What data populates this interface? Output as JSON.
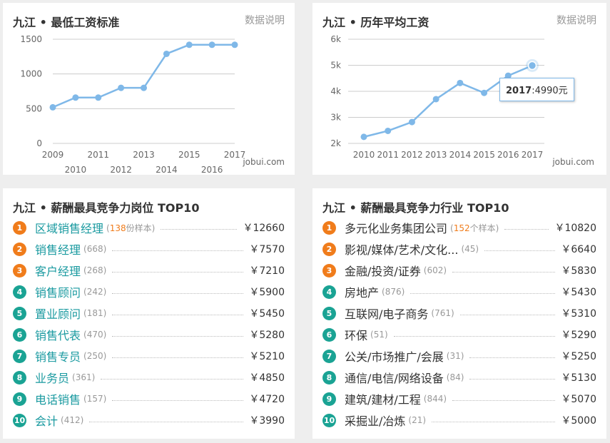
{
  "panels": {
    "min_wage": {
      "title": "九江 • 最低工资标准",
      "link": "数据说明",
      "watermark": "jobui.com"
    },
    "avg_salary": {
      "title": "九江 • 历年平均工资",
      "link": "数据说明",
      "watermark": "jobui.com",
      "tooltip": {
        "year": "2017",
        "value": "4990元"
      }
    },
    "positions": {
      "title": "九江 • 薪酬最具竞争力岗位 TOP10"
    },
    "industries": {
      "title": "九江 • 薪酬最具竞争力行业 TOP10"
    }
  },
  "chart_data": [
    {
      "type": "line",
      "y_ticks": [
        "0",
        "500",
        "1000",
        "1500"
      ],
      "ylim": [
        0,
        1500
      ],
      "x_tick_labels_upper": [
        "2009",
        "2011",
        "2013",
        "2015",
        "2017"
      ],
      "x_tick_labels_lower": [
        "2010",
        "2012",
        "2014",
        "2016"
      ],
      "x": [
        2009,
        2010,
        2011,
        2012,
        2013,
        2014,
        2015,
        2016,
        2017
      ],
      "series": [
        {
          "values": [
            520,
            660,
            660,
            800,
            800,
            1290,
            1420,
            1420,
            1420
          ]
        }
      ],
      "grid": true,
      "color": "#7fb8e8"
    },
    {
      "type": "line",
      "y_ticks": [
        "2k",
        "3k",
        "4k",
        "5k",
        "6k"
      ],
      "ylim": [
        2000,
        6000
      ],
      "x": [
        2010,
        2011,
        2012,
        2013,
        2014,
        2015,
        2016,
        2017
      ],
      "x_tick_labels": [
        "2010",
        "2011",
        "2012",
        "2013",
        "2014",
        "2015",
        "2016",
        "2017"
      ],
      "series": [
        {
          "values": [
            2250,
            2480,
            2820,
            3700,
            4320,
            3940,
            4600,
            4990
          ]
        }
      ],
      "highlight_index": 7,
      "grid": true,
      "color": "#7fb8e8"
    }
  ],
  "positions": [
    {
      "rank": "1",
      "name": "区域销售经理",
      "count": "138",
      "count_suffix": "份样本",
      "salary": "￥12660"
    },
    {
      "rank": "2",
      "name": "销售经理",
      "count": "(668)",
      "salary": "￥7570"
    },
    {
      "rank": "3",
      "name": "客户经理",
      "count": "(268)",
      "salary": "￥7210"
    },
    {
      "rank": "4",
      "name": "销售顾问",
      "count": "(242)",
      "salary": "￥5900"
    },
    {
      "rank": "5",
      "name": "置业顾问",
      "count": "(181)",
      "salary": "￥5450"
    },
    {
      "rank": "6",
      "name": "销售代表",
      "count": "(470)",
      "salary": "￥5280"
    },
    {
      "rank": "7",
      "name": "销售专员",
      "count": "(250)",
      "salary": "￥5210"
    },
    {
      "rank": "8",
      "name": "业务员",
      "count": "(361)",
      "salary": "￥4850"
    },
    {
      "rank": "9",
      "name": "电话销售",
      "count": "(157)",
      "salary": "￥4720"
    },
    {
      "rank": "10",
      "name": "会计",
      "count": "(412)",
      "salary": "￥3990"
    }
  ],
  "industries": [
    {
      "rank": "1",
      "name": "多元化业务集团公司",
      "count": "152",
      "count_suffix": "个样本",
      "salary": "￥10820"
    },
    {
      "rank": "2",
      "name": "影视/媒体/艺术/文化...",
      "count": "(45)",
      "salary": "￥6640"
    },
    {
      "rank": "3",
      "name": "金融/投资/证券",
      "count": "(602)",
      "salary": "￥5830"
    },
    {
      "rank": "4",
      "name": "房地产",
      "count": "(876)",
      "salary": "￥5430"
    },
    {
      "rank": "5",
      "name": "互联网/电子商务",
      "count": "(761)",
      "salary": "￥5310"
    },
    {
      "rank": "6",
      "name": "环保",
      "count": "(51)",
      "salary": "￥5290"
    },
    {
      "rank": "7",
      "name": "公关/市场推广/会展",
      "count": "(31)",
      "salary": "￥5250"
    },
    {
      "rank": "8",
      "name": "通信/电信/网络设备",
      "count": "(84)",
      "salary": "￥5130"
    },
    {
      "rank": "9",
      "name": "建筑/建材/工程",
      "count": "(844)",
      "salary": "￥5070"
    },
    {
      "rank": "10",
      "name": "采掘业/冶炼",
      "count": "(21)",
      "salary": "￥5000"
    }
  ],
  "colors": {
    "accent_orange": "#f07c1b",
    "accent_teal": "#1aa394",
    "link_teal": "#1a9aa0",
    "line_blue": "#7fb8e8"
  }
}
